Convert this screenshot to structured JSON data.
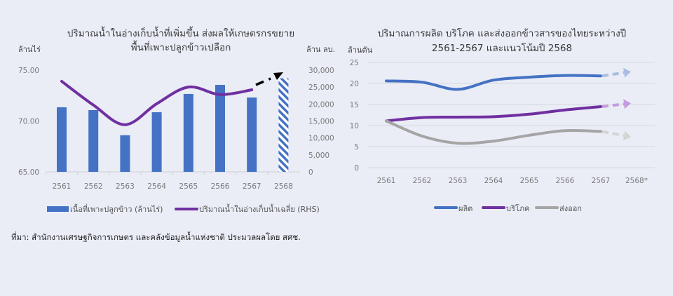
{
  "background": "#eaedf6",
  "left_chart": {
    "title_line1": "ปริมาณน้ำในอ่างเก็บน้ำที่เพิ่มขึ้น ส่งผลให้เกษตรกรขยาย",
    "title_line2": "พื้นที่เพาะปลูกข้าวเปลือก",
    "left_unit": "ล้านไร่",
    "right_unit": "ล้าน ลบ.",
    "left_ticks": [
      "75.00",
      "70.00",
      "65.00"
    ],
    "right_ticks": [
      "30,000",
      "25,000",
      "20,000",
      "15,000",
      "10,000",
      "5,000",
      "0"
    ],
    "categories": [
      "2561",
      "2562",
      "2563",
      "2564",
      "2565",
      "2566",
      "2567",
      "2568"
    ],
    "legend": {
      "bar_label": "เนื้อที่เพาะปลูกข้าว (ล้านไร่)",
      "line_label": "ปริมาณน้ำในอ่างเก็บน้ำเฉลี่ย (RHS)"
    },
    "colors": {
      "bar": "#4472c4",
      "line": "#7030a0",
      "arrow": "#000000"
    }
  },
  "right_chart": {
    "title_line1": "ปริมาณการผลิต บริโภค และส่งออกข้าวสารของไทยระหว่างปี",
    "title_line2": "2561-2567 และแนวโน้มปี 2568",
    "unit": "ล้านตัน",
    "y_ticks": [
      "25",
      "20",
      "15",
      "10",
      "5",
      "0"
    ],
    "categories": [
      "2561",
      "2562",
      "2563",
      "2564",
      "2565",
      "2566",
      "2567",
      "2568*"
    ],
    "legend": [
      {
        "label": "ผลิต",
        "color": "#4472c4"
      },
      {
        "label": "บริโภค",
        "color": "#7030a0"
      },
      {
        "label": "ส่งออก",
        "color": "#a5a5a5"
      }
    ]
  },
  "source_note": "ที่มา: สำนักงานเศรษฐกิจการเกษตร และคลังข้อมูลน้ำแห่งชาติ ประมวลผลโดย สศช.",
  "chart_data": [
    {
      "type": "bar",
      "title": "ปริมาณน้ำในอ่างเก็บน้ำที่เพิ่มขึ้น ส่งผลให้เกษตรกรขยายพื้นที่เพาะปลูกข้าวเปลือก",
      "categories": [
        "2561",
        "2562",
        "2563",
        "2564",
        "2565",
        "2566",
        "2567",
        "2568"
      ],
      "series": [
        {
          "name": "เนื้อที่เพาะปลูกข้าว (ล้านไร่)",
          "type": "bar",
          "axis": "left",
          "values": [
            71.35,
            71.07,
            68.6,
            70.86,
            72.66,
            73.55,
            72.31,
            74.2
          ],
          "note": "2568 is a hatched (forecast) bar"
        },
        {
          "name": "ปริมาณน้ำในอ่างเก็บน้ำเฉลี่ย (RHS)",
          "type": "line",
          "axis": "right",
          "values": [
            26700,
            19700,
            13900,
            20100,
            25000,
            22800,
            24200,
            null
          ]
        }
      ],
      "ylabel": "ล้านไร่",
      "ylim": [
        65,
        75
      ],
      "y2label": "ล้าน ลบ.",
      "y2lim": [
        0,
        30000
      ],
      "annotations": [
        "dashed black arrow from 2567 line end toward 2568 bar"
      ],
      "legend_position": "bottom",
      "grid": false
    },
    {
      "type": "line",
      "title": "ปริมาณการผลิต บริโภค และส่งออกข้าวสารของไทยระหว่างปี 2561-2567 และแนวโน้มปี 2568",
      "categories": [
        "2561",
        "2562",
        "2563",
        "2564",
        "2565",
        "2566",
        "2567",
        "2568*"
      ],
      "series": [
        {
          "name": "ผลิต",
          "values": [
            20.6,
            20.3,
            18.6,
            20.8,
            21.5,
            21.9,
            21.8,
            22.8
          ]
        },
        {
          "name": "บริโภค",
          "values": [
            11.1,
            11.9,
            12.0,
            12.1,
            12.7,
            13.7,
            14.5,
            15.3
          ]
        },
        {
          "name": "ส่งออก",
          "values": [
            11.1,
            7.5,
            5.8,
            6.3,
            7.7,
            8.8,
            8.6,
            7.3
          ]
        }
      ],
      "ylabel": "ล้านตัน",
      "ylim": [
        0,
        25
      ],
      "annotations": [
        "2568* values are dashed trend arrows"
      ],
      "legend_position": "bottom",
      "grid": true
    }
  ]
}
